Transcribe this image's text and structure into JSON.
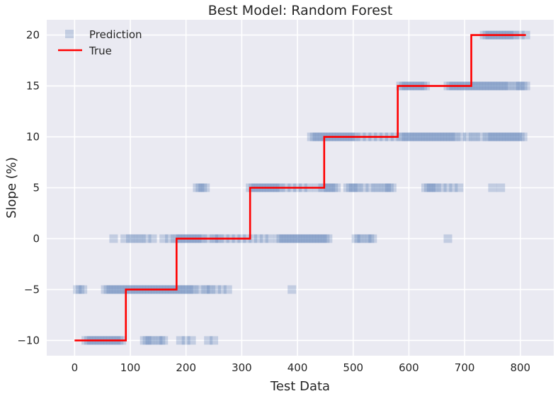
{
  "chart_data": {
    "type": "scatter",
    "title": "Best Model: Random Forest",
    "xlabel": "Test Data",
    "ylabel": "Slope (%)",
    "xlim": [
      -50,
      860
    ],
    "ylim": [
      -11.5,
      21.5
    ],
    "xticks": [
      0,
      100,
      200,
      300,
      400,
      500,
      600,
      700,
      800
    ],
    "yticks": [
      -10,
      -5,
      0,
      5,
      10,
      15,
      20
    ],
    "xtick_labels": [
      "0",
      "100",
      "200",
      "300",
      "400",
      "500",
      "600",
      "700",
      "800"
    ],
    "ytick_labels": [
      "−10",
      "−5",
      "0",
      "5",
      "10",
      "15",
      "20"
    ],
    "grid": true,
    "legend_position": "top-left",
    "colors": {
      "background": "#EAEAF2",
      "grid": "#FFFFFF",
      "prediction": "#4C72B0",
      "true": "#FF0000"
    },
    "series": [
      {
        "name": "Prediction",
        "kind": "markers",
        "marker": "square",
        "alpha": 0.25,
        "points": [
          [
            20,
            -10
          ],
          [
            25,
            -10
          ],
          [
            30,
            -10
          ],
          [
            35,
            -10
          ],
          [
            40,
            -10
          ],
          [
            45,
            -10
          ],
          [
            50,
            -10
          ],
          [
            55,
            -10
          ],
          [
            60,
            -10
          ],
          [
            65,
            -10
          ],
          [
            70,
            -10
          ],
          [
            75,
            -10
          ],
          [
            80,
            -10
          ],
          [
            85,
            -10
          ],
          [
            125,
            -10
          ],
          [
            130,
            -10
          ],
          [
            135,
            -10
          ],
          [
            140,
            -10
          ],
          [
            150,
            -10
          ],
          [
            155,
            -10
          ],
          [
            160,
            -10
          ],
          [
            190,
            -10
          ],
          [
            200,
            -10
          ],
          [
            210,
            -10
          ],
          [
            240,
            -10
          ],
          [
            250,
            -10
          ],
          [
            5,
            -5
          ],
          [
            10,
            -5
          ],
          [
            15,
            -5
          ],
          [
            55,
            -5
          ],
          [
            60,
            -5
          ],
          [
            65,
            -5
          ],
          [
            70,
            -5
          ],
          [
            75,
            -5
          ],
          [
            80,
            -5
          ],
          [
            85,
            -5
          ],
          [
            90,
            -5
          ],
          [
            95,
            -5
          ],
          [
            100,
            -5
          ],
          [
            105,
            -5
          ],
          [
            110,
            -5
          ],
          [
            115,
            -5
          ],
          [
            120,
            -5
          ],
          [
            125,
            -5
          ],
          [
            130,
            -5
          ],
          [
            135,
            -5
          ],
          [
            140,
            -5
          ],
          [
            145,
            -5
          ],
          [
            150,
            -5
          ],
          [
            155,
            -5
          ],
          [
            160,
            -5
          ],
          [
            165,
            -5
          ],
          [
            170,
            -5
          ],
          [
            175,
            -5
          ],
          [
            180,
            -5
          ],
          [
            185,
            -5
          ],
          [
            190,
            -5
          ],
          [
            195,
            -5
          ],
          [
            200,
            -5
          ],
          [
            205,
            -5
          ],
          [
            210,
            -5
          ],
          [
            215,
            -5
          ],
          [
            225,
            -5
          ],
          [
            235,
            -5
          ],
          [
            240,
            -5
          ],
          [
            245,
            -5
          ],
          [
            255,
            -5
          ],
          [
            265,
            -5
          ],
          [
            275,
            -5
          ],
          [
            390,
            -5
          ],
          [
            70,
            0
          ],
          [
            90,
            0
          ],
          [
            100,
            0
          ],
          [
            105,
            0
          ],
          [
            115,
            0
          ],
          [
            120,
            0
          ],
          [
            130,
            0
          ],
          [
            140,
            0
          ],
          [
            160,
            0
          ],
          [
            170,
            0
          ],
          [
            180,
            0
          ],
          [
            185,
            0
          ],
          [
            190,
            0
          ],
          [
            195,
            0
          ],
          [
            200,
            0
          ],
          [
            205,
            0
          ],
          [
            210,
            0
          ],
          [
            215,
            0
          ],
          [
            220,
            0
          ],
          [
            225,
            0
          ],
          [
            230,
            0
          ],
          [
            240,
            0
          ],
          [
            250,
            0
          ],
          [
            255,
            0
          ],
          [
            260,
            0
          ],
          [
            270,
            0
          ],
          [
            280,
            0
          ],
          [
            290,
            0
          ],
          [
            300,
            0
          ],
          [
            310,
            0
          ],
          [
            320,
            0
          ],
          [
            330,
            0
          ],
          [
            340,
            0
          ],
          [
            350,
            0
          ],
          [
            365,
            0
          ],
          [
            370,
            0
          ],
          [
            375,
            0
          ],
          [
            380,
            0
          ],
          [
            385,
            0
          ],
          [
            390,
            0
          ],
          [
            395,
            0
          ],
          [
            400,
            0
          ],
          [
            405,
            0
          ],
          [
            410,
            0
          ],
          [
            415,
            0
          ],
          [
            420,
            0
          ],
          [
            425,
            0
          ],
          [
            430,
            0
          ],
          [
            435,
            0
          ],
          [
            440,
            0
          ],
          [
            445,
            0
          ],
          [
            450,
            0
          ],
          [
            455,
            0
          ],
          [
            505,
            0
          ],
          [
            510,
            0
          ],
          [
            515,
            0
          ],
          [
            525,
            0
          ],
          [
            530,
            0
          ],
          [
            535,
            0
          ],
          [
            670,
            0
          ],
          [
            220,
            5
          ],
          [
            225,
            5
          ],
          [
            230,
            5
          ],
          [
            235,
            5
          ],
          [
            315,
            5
          ],
          [
            320,
            5
          ],
          [
            325,
            5
          ],
          [
            330,
            5
          ],
          [
            335,
            5
          ],
          [
            340,
            5
          ],
          [
            345,
            5
          ],
          [
            350,
            5
          ],
          [
            355,
            5
          ],
          [
            360,
            5
          ],
          [
            365,
            5
          ],
          [
            370,
            5
          ],
          [
            380,
            5
          ],
          [
            390,
            5
          ],
          [
            400,
            5
          ],
          [
            410,
            5
          ],
          [
            420,
            5
          ],
          [
            435,
            5
          ],
          [
            445,
            5
          ],
          [
            450,
            5
          ],
          [
            455,
            5
          ],
          [
            460,
            5
          ],
          [
            465,
            5
          ],
          [
            470,
            5
          ],
          [
            490,
            5
          ],
          [
            495,
            5
          ],
          [
            500,
            5
          ],
          [
            505,
            5
          ],
          [
            510,
            5
          ],
          [
            520,
            5
          ],
          [
            530,
            5
          ],
          [
            540,
            5
          ],
          [
            545,
            5
          ],
          [
            555,
            5
          ],
          [
            560,
            5
          ],
          [
            565,
            5
          ],
          [
            570,
            5
          ],
          [
            630,
            5
          ],
          [
            635,
            5
          ],
          [
            640,
            5
          ],
          [
            645,
            5
          ],
          [
            650,
            5
          ],
          [
            660,
            5
          ],
          [
            670,
            5
          ],
          [
            680,
            5
          ],
          [
            690,
            5
          ],
          [
            750,
            5
          ],
          [
            765,
            5
          ],
          [
            425,
            10
          ],
          [
            430,
            10
          ],
          [
            435,
            10
          ],
          [
            440,
            10
          ],
          [
            445,
            10
          ],
          [
            450,
            10
          ],
          [
            455,
            10
          ],
          [
            460,
            10
          ],
          [
            465,
            10
          ],
          [
            470,
            10
          ],
          [
            475,
            10
          ],
          [
            480,
            10
          ],
          [
            485,
            10
          ],
          [
            490,
            10
          ],
          [
            495,
            10
          ],
          [
            500,
            10
          ],
          [
            505,
            10
          ],
          [
            515,
            10
          ],
          [
            525,
            10
          ],
          [
            535,
            10
          ],
          [
            545,
            10
          ],
          [
            555,
            10
          ],
          [
            565,
            10
          ],
          [
            575,
            10
          ],
          [
            585,
            10
          ],
          [
            590,
            10
          ],
          [
            595,
            10
          ],
          [
            600,
            10
          ],
          [
            605,
            10
          ],
          [
            610,
            10
          ],
          [
            615,
            10
          ],
          [
            620,
            10
          ],
          [
            625,
            10
          ],
          [
            630,
            10
          ],
          [
            635,
            10
          ],
          [
            640,
            10
          ],
          [
            645,
            10
          ],
          [
            650,
            10
          ],
          [
            655,
            10
          ],
          [
            660,
            10
          ],
          [
            665,
            10
          ],
          [
            670,
            10
          ],
          [
            675,
            10
          ],
          [
            680,
            10
          ],
          [
            685,
            10
          ],
          [
            695,
            10
          ],
          [
            705,
            10
          ],
          [
            715,
            10
          ],
          [
            720,
            10
          ],
          [
            730,
            10
          ],
          [
            740,
            10
          ],
          [
            745,
            10
          ],
          [
            750,
            10
          ],
          [
            755,
            10
          ],
          [
            760,
            10
          ],
          [
            765,
            10
          ],
          [
            770,
            10
          ],
          [
            775,
            10
          ],
          [
            780,
            10
          ],
          [
            785,
            10
          ],
          [
            790,
            10
          ],
          [
            795,
            10
          ],
          [
            800,
            10
          ],
          [
            805,
            10
          ],
          [
            585,
            15
          ],
          [
            590,
            15
          ],
          [
            595,
            15
          ],
          [
            600,
            15
          ],
          [
            605,
            15
          ],
          [
            610,
            15
          ],
          [
            615,
            15
          ],
          [
            620,
            15
          ],
          [
            625,
            15
          ],
          [
            630,
            15
          ],
          [
            670,
            15
          ],
          [
            675,
            15
          ],
          [
            680,
            15
          ],
          [
            685,
            15
          ],
          [
            690,
            15
          ],
          [
            695,
            15
          ],
          [
            700,
            15
          ],
          [
            705,
            15
          ],
          [
            710,
            15
          ],
          [
            715,
            15
          ],
          [
            720,
            15
          ],
          [
            725,
            15
          ],
          [
            730,
            15
          ],
          [
            735,
            15
          ],
          [
            740,
            15
          ],
          [
            745,
            15
          ],
          [
            750,
            15
          ],
          [
            755,
            15
          ],
          [
            760,
            15
          ],
          [
            765,
            15
          ],
          [
            770,
            15
          ],
          [
            775,
            15
          ],
          [
            780,
            15
          ],
          [
            790,
            15
          ],
          [
            795,
            15
          ],
          [
            800,
            15
          ],
          [
            805,
            15
          ],
          [
            810,
            15
          ],
          [
            735,
            20
          ],
          [
            740,
            20
          ],
          [
            745,
            20
          ],
          [
            750,
            20
          ],
          [
            755,
            20
          ],
          [
            760,
            20
          ],
          [
            765,
            20
          ],
          [
            770,
            20
          ],
          [
            775,
            20
          ],
          [
            780,
            20
          ],
          [
            785,
            20
          ],
          [
            790,
            20
          ],
          [
            800,
            20
          ],
          [
            810,
            20
          ]
        ]
      },
      {
        "name": "True",
        "kind": "step-line",
        "points": [
          [
            0,
            -10
          ],
          [
            92,
            -10
          ],
          [
            92,
            -5
          ],
          [
            183,
            -5
          ],
          [
            183,
            0
          ],
          [
            315,
            0
          ],
          [
            315,
            5
          ],
          [
            448,
            5
          ],
          [
            448,
            10
          ],
          [
            580,
            10
          ],
          [
            580,
            15
          ],
          [
            712,
            15
          ],
          [
            712,
            20
          ],
          [
            810,
            20
          ]
        ]
      }
    ]
  }
}
